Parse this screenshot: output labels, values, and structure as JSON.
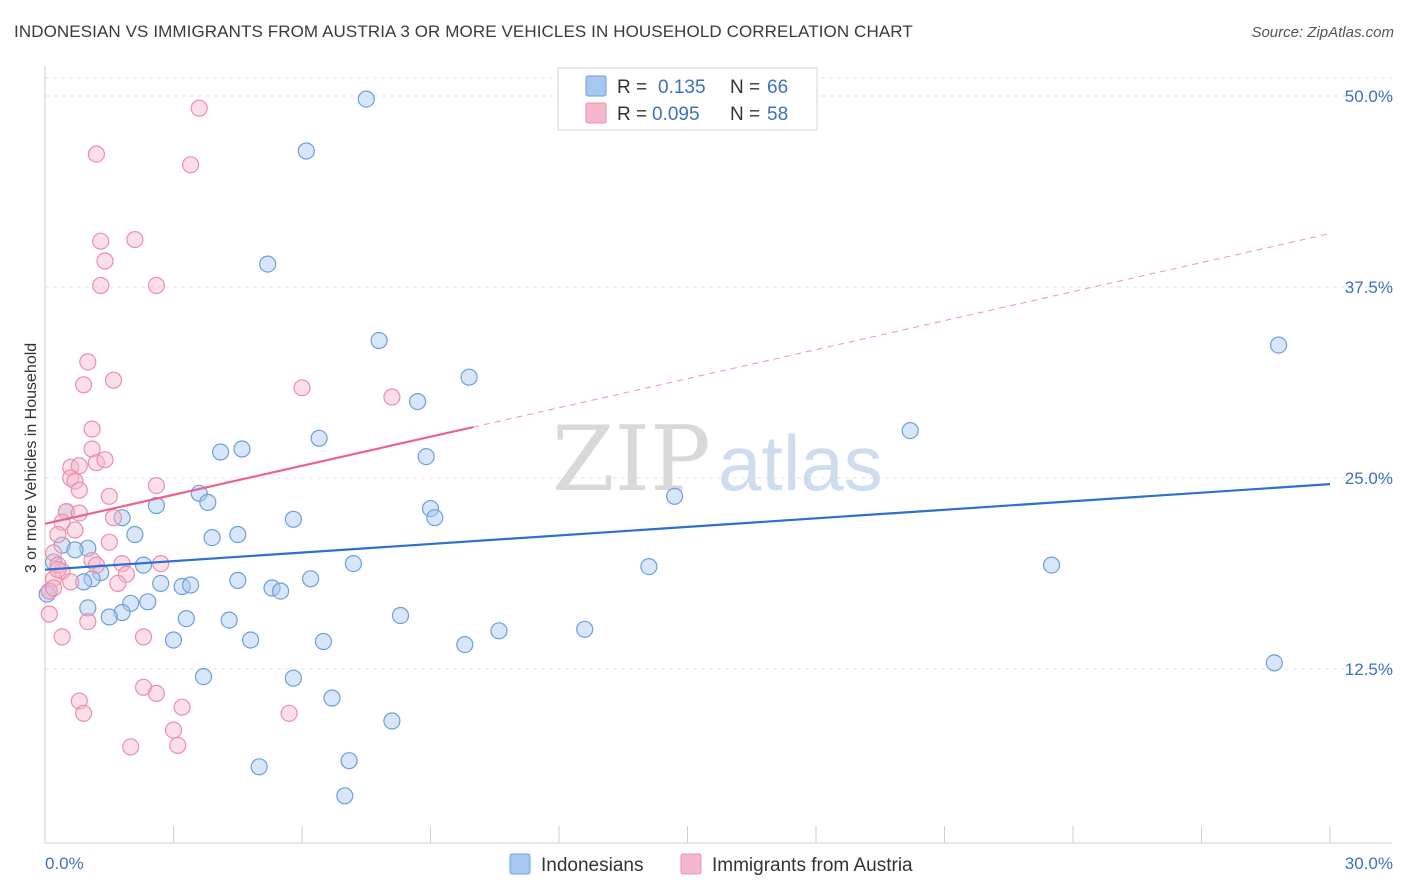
{
  "title": "INDONESIAN VS IMMIGRANTS FROM AUSTRIA 3 OR MORE VEHICLES IN HOUSEHOLD CORRELATION CHART",
  "source": "Source: ZipAtlas.com",
  "watermark": {
    "zip": "ZIP",
    "atlas": "atlas"
  },
  "legend": {
    "rows": [
      {
        "r_label": "R =",
        "r_value": "0.135",
        "n_label": "N =",
        "n_value": "66",
        "color": "#a7c7f0"
      },
      {
        "r_label": "R =",
        "r_value": "0.095",
        "n_label": "N =",
        "n_value": "58",
        "color": "#f5b8cb"
      }
    ]
  },
  "bottom_legend": [
    {
      "label": "Indonesians",
      "color": "#a7c7f0"
    },
    {
      "label": "Immigrants from Austria",
      "color": "#f5b8cb"
    }
  ],
  "chart_data": {
    "type": "scatter",
    "title": "INDONESIAN VS IMMIGRANTS FROM AUSTRIA 3 OR MORE VEHICLES IN HOUSEHOLD CORRELATION CHART",
    "xlabel": "",
    "ylabel": "3 or more Vehicles in Household",
    "xlim": [
      0,
      30
    ],
    "ylim": [
      0,
      50
    ],
    "x_tick_labels": [
      "0.0%",
      "30.0%"
    ],
    "y_ticks": [
      12.5,
      25.0,
      37.5,
      50.0
    ],
    "y_tick_labels": [
      "12.5%",
      "25.0%",
      "37.5%",
      "50.0%"
    ],
    "series": [
      {
        "name": "Indonesians",
        "color": "#a7c7f0",
        "stroke": "#6e9fdc",
        "trend": {
          "x0": 0,
          "y0": 19.0,
          "x1": 30,
          "y1": 24.6,
          "color": "#2f6fcf",
          "dashed_from": null
        },
        "points": [
          [
            7.5,
            49.8
          ],
          [
            6.1,
            46.4
          ],
          [
            5.2,
            39.0
          ],
          [
            7.8,
            34.0
          ],
          [
            9.9,
            31.6
          ],
          [
            28.8,
            33.7
          ],
          [
            8.7,
            30.0
          ],
          [
            20.2,
            28.1
          ],
          [
            6.4,
            27.6
          ],
          [
            4.6,
            26.9
          ],
          [
            4.1,
            26.7
          ],
          [
            8.9,
            26.4
          ],
          [
            14.7,
            23.8
          ],
          [
            3.6,
            24.0
          ],
          [
            3.8,
            23.4
          ],
          [
            2.6,
            23.2
          ],
          [
            9.0,
            23.0
          ],
          [
            9.1,
            22.4
          ],
          [
            0.5,
            22.8
          ],
          [
            1.8,
            22.4
          ],
          [
            5.8,
            22.3
          ],
          [
            2.1,
            21.3
          ],
          [
            3.9,
            21.1
          ],
          [
            4.5,
            21.3
          ],
          [
            0.4,
            20.6
          ],
          [
            1.0,
            20.4
          ],
          [
            0.7,
            20.3
          ],
          [
            0.2,
            19.5
          ],
          [
            2.3,
            19.3
          ],
          [
            7.2,
            19.4
          ],
          [
            14.1,
            19.2
          ],
          [
            23.5,
            19.3
          ],
          [
            1.3,
            18.8
          ],
          [
            1.1,
            18.4
          ],
          [
            0.9,
            18.2
          ],
          [
            2.7,
            18.1
          ],
          [
            3.2,
            17.9
          ],
          [
            3.4,
            18.0
          ],
          [
            4.5,
            18.3
          ],
          [
            6.2,
            18.4
          ],
          [
            5.3,
            17.8
          ],
          [
            5.5,
            17.6
          ],
          [
            0.1,
            17.6
          ],
          [
            2.4,
            16.9
          ],
          [
            2.0,
            16.8
          ],
          [
            1.0,
            16.5
          ],
          [
            1.8,
            16.2
          ],
          [
            8.3,
            16.0
          ],
          [
            1.5,
            15.9
          ],
          [
            3.3,
            15.8
          ],
          [
            4.3,
            15.7
          ],
          [
            10.6,
            15.0
          ],
          [
            12.6,
            15.1
          ],
          [
            3.0,
            14.4
          ],
          [
            4.8,
            14.4
          ],
          [
            6.5,
            14.3
          ],
          [
            9.8,
            14.1
          ],
          [
            28.7,
            12.9
          ],
          [
            3.7,
            12.0
          ],
          [
            5.8,
            11.9
          ],
          [
            6.7,
            10.6
          ],
          [
            8.1,
            9.1
          ],
          [
            7.1,
            6.5
          ],
          [
            5.0,
            6.1
          ],
          [
            7.0,
            4.2
          ],
          [
            0.05,
            17.4
          ]
        ]
      },
      {
        "name": "Immigrants from Austria",
        "color": "#f5b8cb",
        "stroke": "#ec8fac",
        "trend": {
          "x0": 0,
          "y0": 22.0,
          "x1": 30,
          "y1": 41.0,
          "color": "#e8658f",
          "solid_until": 10.0
        },
        "points": [
          [
            3.6,
            49.2
          ],
          [
            1.2,
            46.2
          ],
          [
            3.4,
            45.5
          ],
          [
            1.3,
            40.5
          ],
          [
            2.1,
            40.6
          ],
          [
            1.4,
            39.2
          ],
          [
            1.3,
            37.6
          ],
          [
            2.6,
            37.6
          ],
          [
            1.0,
            32.6
          ],
          [
            1.6,
            31.4
          ],
          [
            6.0,
            30.9
          ],
          [
            8.1,
            30.3
          ],
          [
            0.9,
            31.1
          ],
          [
            1.1,
            28.2
          ],
          [
            1.1,
            26.9
          ],
          [
            1.2,
            26.0
          ],
          [
            1.4,
            26.2
          ],
          [
            0.6,
            25.7
          ],
          [
            0.8,
            25.8
          ],
          [
            0.6,
            25.0
          ],
          [
            0.7,
            24.8
          ],
          [
            2.6,
            24.5
          ],
          [
            0.8,
            24.2
          ],
          [
            1.5,
            23.8
          ],
          [
            0.5,
            22.8
          ],
          [
            0.8,
            22.7
          ],
          [
            0.4,
            22.1
          ],
          [
            1.6,
            22.4
          ],
          [
            0.3,
            21.3
          ],
          [
            1.5,
            20.8
          ],
          [
            0.2,
            20.1
          ],
          [
            1.1,
            19.6
          ],
          [
            1.8,
            19.4
          ],
          [
            2.7,
            19.4
          ],
          [
            0.3,
            19.3
          ],
          [
            1.2,
            19.3
          ],
          [
            0.4,
            18.9
          ],
          [
            1.9,
            18.7
          ],
          [
            0.2,
            18.4
          ],
          [
            0.6,
            18.2
          ],
          [
            1.7,
            18.1
          ],
          [
            0.1,
            17.6
          ],
          [
            0.1,
            16.1
          ],
          [
            1.0,
            15.6
          ],
          [
            2.3,
            14.6
          ],
          [
            0.4,
            14.6
          ],
          [
            2.3,
            11.3
          ],
          [
            2.6,
            10.9
          ],
          [
            0.8,
            10.4
          ],
          [
            3.2,
            10.0
          ],
          [
            0.9,
            9.6
          ],
          [
            5.7,
            9.6
          ],
          [
            3.0,
            8.5
          ],
          [
            3.1,
            7.5
          ],
          [
            2.0,
            7.4
          ],
          [
            0.3,
            19.0
          ],
          [
            0.7,
            21.6
          ],
          [
            0.2,
            17.8
          ]
        ]
      }
    ]
  }
}
